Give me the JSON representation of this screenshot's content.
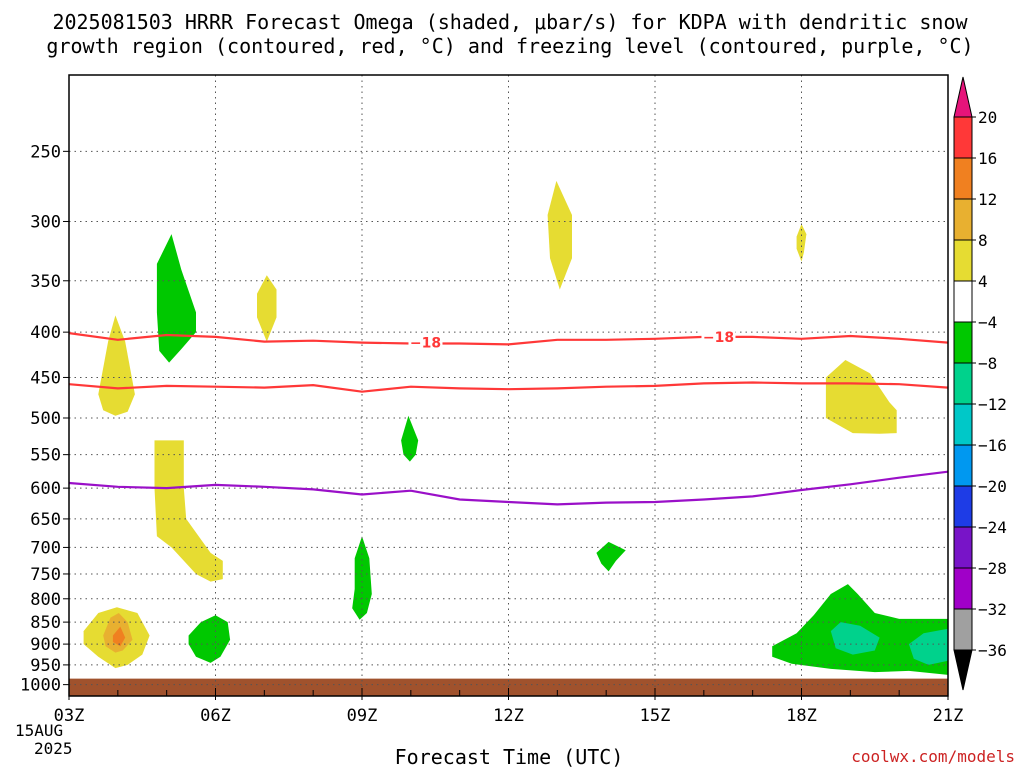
{
  "title_line1": "2025081503 HRRR Forecast Omega (shaded, μbar/s) for KDPA with dendritic snow",
  "title_line2": "growth region (contoured, red, °C) and freezing level (contoured, purple, °C)",
  "xlabel": "Forecast Time (UTC)",
  "watermark": "coolwx.com/models",
  "date_line1": "15AUG",
  "date_line2": "2025",
  "chart_data": {
    "type": "time-height contour",
    "xlabel": "Forecast Time (UTC)",
    "ylabel": "",
    "x_range_hours_utc": [
      3,
      21
    ],
    "y_range_hPa": [
      1030,
      205
    ],
    "y_scale": "log pressure (inverted)",
    "grid": true,
    "x_ticks": [
      {
        "hour": 3,
        "label": "03Z"
      },
      {
        "hour": 6,
        "label": "06Z"
      },
      {
        "hour": 9,
        "label": "09Z"
      },
      {
        "hour": 12,
        "label": "12Z"
      },
      {
        "hour": 15,
        "label": "15Z"
      },
      {
        "hour": 18,
        "label": "18Z"
      },
      {
        "hour": 21,
        "label": "21Z"
      }
    ],
    "y_ticks": [
      250,
      300,
      350,
      400,
      450,
      500,
      550,
      600,
      650,
      700,
      750,
      800,
      850,
      900,
      950,
      1000
    ],
    "colorbar": {
      "labels": [
        "20",
        "16",
        "12",
        "8",
        "4",
        "−4",
        "−8",
        "−12",
        "−16",
        "−20",
        "−24",
        "−28",
        "−32",
        "−36"
      ],
      "bins": [
        {
          "color": "#ff3838"
        },
        {
          "color": "#f08020"
        },
        {
          "color": "#e8b030"
        },
        {
          "color": "#e6dc32"
        },
        {
          "color": "#ffffff"
        },
        {
          "color": "#00c800"
        },
        {
          "color": "#00d28c"
        },
        {
          "color": "#00c8c8"
        },
        {
          "color": "#0098f0"
        },
        {
          "color": "#1e3ce6"
        },
        {
          "color": "#7814c8"
        },
        {
          "color": "#a000c8"
        },
        {
          "color": "#a0a0a0"
        }
      ],
      "top_arrow_color": "#e6147a",
      "bottom_arrow_color": "#000000"
    },
    "contours": [
      {
        "name": "dgz_upper",
        "label": "−18",
        "color": "#ff3838",
        "points": [
          [
            3,
            401
          ],
          [
            4,
            408
          ],
          [
            5,
            403
          ],
          [
            6,
            405
          ],
          [
            7,
            410
          ],
          [
            8,
            409
          ],
          [
            9,
            411
          ],
          [
            10,
            412
          ],
          [
            11,
            412
          ],
          [
            12,
            413
          ],
          [
            13,
            408
          ],
          [
            14,
            408
          ],
          [
            15,
            407
          ],
          [
            16,
            405
          ],
          [
            17,
            405
          ],
          [
            18,
            407
          ],
          [
            19,
            404
          ],
          [
            20,
            407
          ],
          [
            21,
            411
          ]
        ],
        "label_positions": [
          [
            10.3,
            411
          ],
          [
            16.3,
            405
          ]
        ]
      },
      {
        "name": "dgz_lower",
        "label": "",
        "color": "#ff3838",
        "points": [
          [
            3,
            458
          ],
          [
            4,
            463
          ],
          [
            5,
            460
          ],
          [
            6,
            461
          ],
          [
            7,
            462
          ],
          [
            8,
            459
          ],
          [
            9,
            467
          ],
          [
            10,
            461
          ],
          [
            11,
            463
          ],
          [
            12,
            464
          ],
          [
            13,
            463
          ],
          [
            14,
            461
          ],
          [
            15,
            460
          ],
          [
            16,
            457
          ],
          [
            17,
            456
          ],
          [
            18,
            457
          ],
          [
            19,
            457
          ],
          [
            20,
            458
          ],
          [
            21,
            462
          ]
        ],
        "label_positions": []
      },
      {
        "name": "freezing_level",
        "label": "",
        "color": "#9a10c8",
        "points": [
          [
            3,
            592
          ],
          [
            4,
            598
          ],
          [
            5,
            600
          ],
          [
            6,
            595
          ],
          [
            7,
            598
          ],
          [
            8,
            602
          ],
          [
            9,
            610
          ],
          [
            10,
            604
          ],
          [
            11,
            618
          ],
          [
            12,
            622
          ],
          [
            13,
            626
          ],
          [
            14,
            623
          ],
          [
            15,
            622
          ],
          [
            16,
            618
          ],
          [
            17,
            613
          ],
          [
            18,
            603
          ],
          [
            19,
            594
          ],
          [
            20,
            584
          ],
          [
            21,
            575
          ]
        ],
        "label_positions": []
      }
    ],
    "omega_regions": [
      {
        "value": 6,
        "color": "#e6dc32",
        "points": [
          [
            3.6,
            470
          ],
          [
            3.8,
            410
          ],
          [
            3.95,
            383
          ],
          [
            4.15,
            410
          ],
          [
            4.35,
            470
          ],
          [
            4.2,
            492
          ],
          [
            3.95,
            497
          ],
          [
            3.7,
            490
          ]
        ]
      },
      {
        "value": -6,
        "color": "#00c800",
        "points": [
          [
            4.8,
            335
          ],
          [
            5.1,
            310
          ],
          [
            5.3,
            340
          ],
          [
            5.6,
            380
          ],
          [
            5.6,
            400
          ],
          [
            5.3,
            418
          ],
          [
            5.05,
            433
          ],
          [
            4.85,
            420
          ],
          [
            4.8,
            380
          ]
        ]
      },
      {
        "value": 6,
        "color": "#e6dc32",
        "points": [
          [
            6.85,
            362
          ],
          [
            7.05,
            345
          ],
          [
            7.25,
            358
          ],
          [
            7.25,
            385
          ],
          [
            7.05,
            410
          ],
          [
            6.85,
            385
          ]
        ]
      },
      {
        "value": 6,
        "color": "#e6dc32",
        "points": [
          [
            12.8,
            295
          ],
          [
            12.98,
            270
          ],
          [
            13.3,
            295
          ],
          [
            13.3,
            330
          ],
          [
            13.05,
            358
          ],
          [
            12.85,
            330
          ]
        ]
      },
      {
        "value": 6,
        "color": "#e6dc32",
        "points": [
          [
            17.9,
            312
          ],
          [
            18,
            302
          ],
          [
            18.1,
            310
          ],
          [
            18.05,
            325
          ],
          [
            18,
            333
          ],
          [
            17.9,
            322
          ]
        ]
      },
      {
        "value": 6,
        "color": "#e6dc32",
        "points": [
          [
            18.5,
            450
          ],
          [
            18.9,
            430
          ],
          [
            19.4,
            445
          ],
          [
            19.8,
            480
          ],
          [
            19.95,
            490
          ],
          [
            19.95,
            520
          ],
          [
            19.6,
            521
          ],
          [
            19.05,
            520
          ],
          [
            18.5,
            500
          ]
        ]
      },
      {
        "value": -6,
        "color": "#00c800",
        "points": [
          [
            9.8,
            530
          ],
          [
            9.95,
            497
          ],
          [
            10.15,
            530
          ],
          [
            10.1,
            550
          ],
          [
            9.98,
            560
          ],
          [
            9.85,
            550
          ]
        ]
      },
      {
        "value": 6,
        "color": "#e6dc32",
        "points": [
          [
            4.75,
            530
          ],
          [
            5.35,
            530
          ],
          [
            5.35,
            600
          ],
          [
            5.4,
            650
          ],
          [
            5.9,
            710
          ],
          [
            6.15,
            725
          ],
          [
            6.15,
            760
          ],
          [
            5.9,
            765
          ],
          [
            5.6,
            750
          ],
          [
            5.1,
            700
          ],
          [
            4.8,
            680
          ],
          [
            4.75,
            600
          ]
        ]
      },
      {
        "value": -6,
        "color": "#00c800",
        "points": [
          [
            8.85,
            720
          ],
          [
            9,
            680
          ],
          [
            9.15,
            720
          ],
          [
            9.2,
            790
          ],
          [
            9.1,
            830
          ],
          [
            8.95,
            845
          ],
          [
            8.8,
            820
          ],
          [
            8.85,
            780
          ]
        ]
      },
      {
        "value": -6,
        "color": "#00c800",
        "points": [
          [
            13.8,
            710
          ],
          [
            14.05,
            690
          ],
          [
            14.4,
            705
          ],
          [
            14.2,
            725
          ],
          [
            14.05,
            745
          ],
          [
            13.9,
            730
          ]
        ]
      },
      {
        "value": 6,
        "color": "#e6dc32",
        "points": [
          [
            3.3,
            870
          ],
          [
            3.6,
            830
          ],
          [
            3.98,
            818
          ],
          [
            4.4,
            830
          ],
          [
            4.65,
            880
          ],
          [
            4.5,
            925
          ],
          [
            4.2,
            950
          ],
          [
            3.95,
            958
          ],
          [
            3.6,
            930
          ],
          [
            3.3,
            900
          ]
        ]
      },
      {
        "value": 10,
        "color": "#e8b030",
        "points": [
          [
            3.7,
            880
          ],
          [
            3.85,
            840
          ],
          [
            4.02,
            830
          ],
          [
            4.2,
            850
          ],
          [
            4.3,
            890
          ],
          [
            4.1,
            915
          ],
          [
            3.95,
            920
          ],
          [
            3.75,
            905
          ]
        ]
      },
      {
        "value": 14,
        "color": "#f08020",
        "points": [
          [
            3.9,
            880
          ],
          [
            4.05,
            860
          ],
          [
            4.15,
            885
          ],
          [
            4.05,
            905
          ],
          [
            3.9,
            895
          ]
        ]
      },
      {
        "value": -6,
        "color": "#00c800",
        "points": [
          [
            5.45,
            880
          ],
          [
            5.7,
            850
          ],
          [
            6.0,
            835
          ],
          [
            6.25,
            850
          ],
          [
            6.3,
            890
          ],
          [
            6.1,
            930
          ],
          [
            5.9,
            945
          ],
          [
            5.6,
            930
          ],
          [
            5.45,
            900
          ]
        ]
      },
      {
        "value": -6,
        "color": "#00c800",
        "points": [
          [
            17.4,
            905
          ],
          [
            17.9,
            875
          ],
          [
            18.25,
            835
          ],
          [
            18.6,
            790
          ],
          [
            18.95,
            770
          ],
          [
            19.15,
            790
          ],
          [
            19.5,
            830
          ],
          [
            20.0,
            843
          ],
          [
            21.0,
            843
          ],
          [
            21.0,
            975
          ],
          [
            20.2,
            965
          ],
          [
            19.5,
            968
          ],
          [
            18.6,
            960
          ],
          [
            17.8,
            947
          ],
          [
            17.4,
            930
          ]
        ]
      },
      {
        "value": -10,
        "color": "#00d28c",
        "points": [
          [
            18.6,
            870
          ],
          [
            18.8,
            850
          ],
          [
            19.2,
            858
          ],
          [
            19.6,
            885
          ],
          [
            19.5,
            915
          ],
          [
            19.05,
            925
          ],
          [
            18.7,
            910
          ]
        ]
      },
      {
        "value": -10,
        "color": "#00d28c",
        "points": [
          [
            20.2,
            900
          ],
          [
            20.5,
            875
          ],
          [
            21.0,
            865
          ],
          [
            21.0,
            940
          ],
          [
            20.6,
            950
          ],
          [
            20.3,
            935
          ]
        ]
      }
    ],
    "ground": {
      "color": "#a0522d",
      "pressure_top": 1000
    }
  }
}
